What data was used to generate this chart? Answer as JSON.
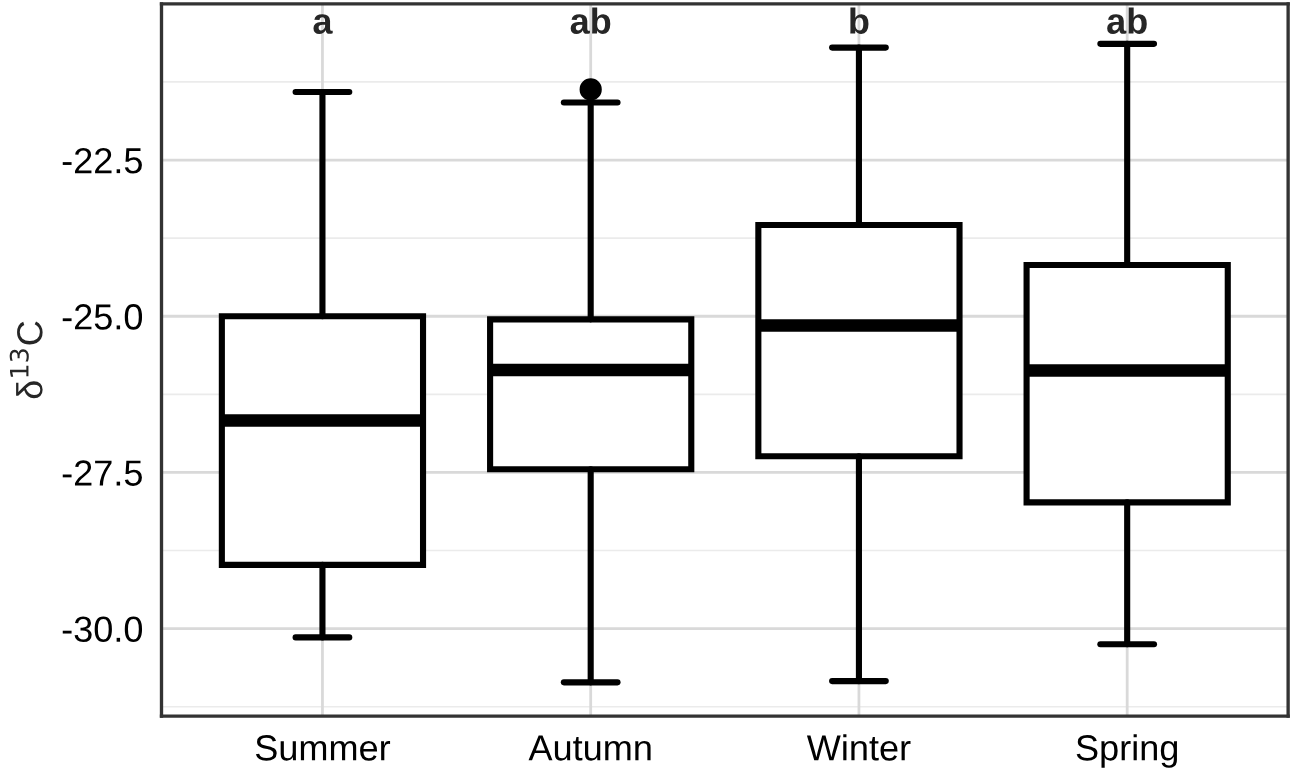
{
  "chart_data": {
    "type": "box",
    "ylabel": "δ$^{13}$C",
    "categories": [
      "Summer",
      "Autumn",
      "Winter",
      "Spring"
    ],
    "boxes": [
      {
        "low": -30.14,
        "q1": -28.98,
        "median": -26.67,
        "q3": -25.0,
        "high": -21.41
      },
      {
        "low": -30.86,
        "q1": -27.45,
        "median": -25.86,
        "q3": -25.05,
        "high": -21.58,
        "outliers": [
          -21.37
        ]
      },
      {
        "low": -30.84,
        "q1": -27.24,
        "median": -25.15,
        "q3": -23.54,
        "high": -20.7
      },
      {
        "low": -30.25,
        "q1": -27.98,
        "median": -25.87,
        "q3": -24.18,
        "high": -20.64
      }
    ],
    "annotations": [
      "a",
      "ab",
      "b",
      "ab"
    ],
    "ylim": [
      -31.4,
      -20.0
    ],
    "yticks": [
      {
        "value": -30,
        "label": "-30.0"
      },
      {
        "value": -27.5,
        "label": "-27.5"
      },
      {
        "value": -25,
        "label": "-25.0"
      },
      {
        "value": -22.5,
        "label": "-22.5"
      }
    ],
    "grid": true
  }
}
